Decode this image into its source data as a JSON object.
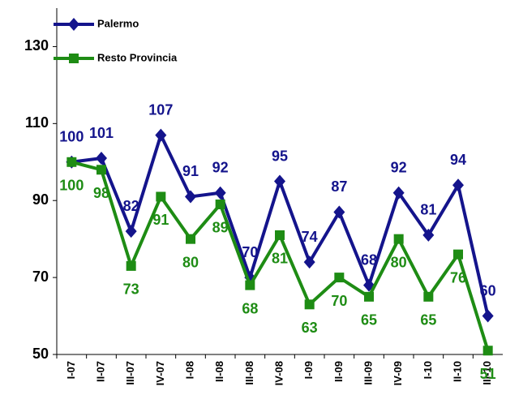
{
  "chart_data": {
    "type": "line",
    "categories": [
      "I-07",
      "II-07",
      "III-07",
      "IV-07",
      "I-08",
      "II-08",
      "III-08",
      "IV-08",
      "I-09",
      "II-09",
      "III-09",
      "IV-09",
      "I-10",
      "II-10",
      "III-10"
    ],
    "series": [
      {
        "name": "Palermo",
        "color": "#14148c",
        "marker": "diamond",
        "values": [
          100,
          101,
          82,
          107,
          91,
          92,
          70,
          95,
          74,
          87,
          68,
          92,
          81,
          94,
          60
        ]
      },
      {
        "name": "Resto Provincia",
        "color": "#1e8c14",
        "marker": "square",
        "values": [
          100,
          98,
          73,
          91,
          80,
          89,
          68,
          81,
          63,
          70,
          65,
          80,
          65,
          76,
          51
        ]
      }
    ],
    "ylim": [
      50,
      140
    ],
    "yticks": [
      50,
      70,
      90,
      110,
      130
    ],
    "grid": false,
    "legend": "top-left"
  }
}
